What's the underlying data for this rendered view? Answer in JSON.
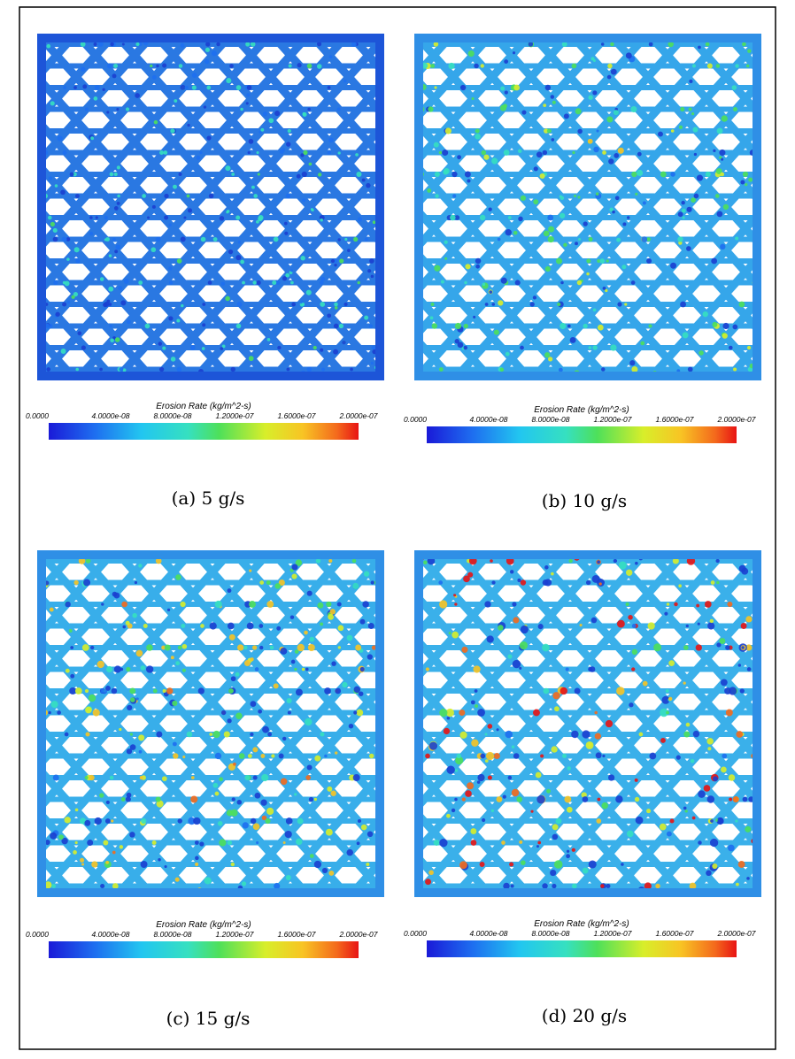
{
  "figure": {
    "panels": [
      {
        "caption": "(a) 5 g/s",
        "colorbar": {
          "title": "Erosion Rate (kg/m^2-s)",
          "ticks": [
            "0.0000",
            "4.0000e-08",
            "8.0000e-08",
            "1.2000e-07",
            "1.6000e-07",
            "2.0000e-07"
          ]
        }
      },
      {
        "caption": "(b) 10 g/s",
        "colorbar": {
          "title": "Erosion Rate (kg/m^2-s)",
          "ticks": [
            "0.0000",
            "4.0000e-08",
            "8.0000e-08",
            "1.2000e-07",
            "1.6000e-07",
            "2.0000e-07"
          ]
        }
      },
      {
        "caption": "(c) 15 g/s",
        "colorbar": {
          "title": "Erosion Rate (kg/m^2-s)",
          "ticks": [
            "0.0000",
            "4.0000e-08",
            "8.0000e-08",
            "1.2000e-07",
            "1.6000e-07",
            "2.0000e-07"
          ]
        }
      },
      {
        "caption": "(d) 20 g/s",
        "colorbar": {
          "title": "Erosion Rate (kg/m^2-s)",
          "ticks": [
            "0.0000",
            "4.0000e-08",
            "8.0000e-08",
            "1.2000e-07",
            "1.6000e-07",
            "2.0000e-07"
          ]
        }
      }
    ]
  }
}
